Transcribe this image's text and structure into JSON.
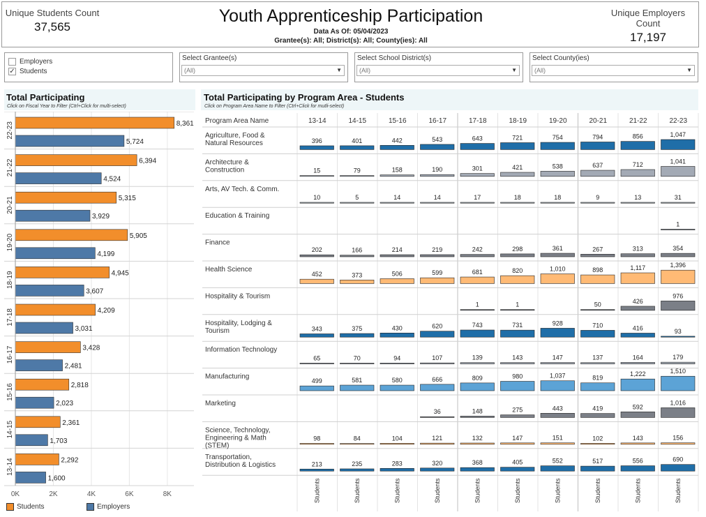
{
  "header": {
    "students_label": "Unique Students Count",
    "students_value": "37,565",
    "title": "Youth Apprenticeship Participation",
    "data_as_of": "Data As Of: 05/04/2023",
    "filters_summary": "Grantee(s):  All; District(s):  All; County(ies): All",
    "employers_label": "Unique Employers Count",
    "employers_value": "17,197"
  },
  "type_filter": {
    "items": [
      {
        "label": "Employers",
        "checked": false
      },
      {
        "label": "Students",
        "checked": true
      }
    ],
    "check_glyph": "✓"
  },
  "filters": [
    {
      "label": "Select Grantee(s)",
      "value": "(All)"
    },
    {
      "label": "Select School District(s)",
      "value": "(All)"
    },
    {
      "label": "Select County(ies)",
      "value": "(All)"
    }
  ],
  "icons": {
    "dropdown": "chevron-down-icon",
    "dropdown_glyph": "▼"
  },
  "colors": {
    "students": "#f28e2b",
    "employers": "#4e79a7",
    "program_blue": "#1f6ea8",
    "program_gray": "#a3aab5",
    "program_orange": "#ffba75",
    "program_light_blue": "#5ca3d6",
    "program_dark_gray": "#7b7f87"
  },
  "left_panel": {
    "title": "Total  Participating",
    "subtitle": "Click on Fiscal Year to Filter (Ctrl+Click for multi-select)"
  },
  "legend": {
    "students": "Students",
    "employers": "Employers"
  },
  "chart_data": [
    {
      "type": "bar",
      "orientation": "horizontal",
      "title": "Total  Participating",
      "categories": [
        "22-23",
        "21-22",
        "20-21",
        "19-20",
        "18-19",
        "17-18",
        "16-17",
        "15-16",
        "14-15",
        "13-14"
      ],
      "series": [
        {
          "name": "Students",
          "values": [
            8361,
            6394,
            5315,
            5905,
            4945,
            4209,
            3428,
            2818,
            2361,
            2292
          ]
        },
        {
          "name": "Employers",
          "values": [
            5724,
            4524,
            3929,
            4199,
            3607,
            3031,
            2481,
            2023,
            1703,
            1600
          ]
        }
      ],
      "xlim": [
        0,
        9400
      ],
      "xticks": [
        0,
        2000,
        4000,
        6000,
        8000
      ],
      "xtick_labels": [
        "0K",
        "2K",
        "4K",
        "6K",
        "8K"
      ],
      "legend": "bottom"
    },
    {
      "type": "bar",
      "title": "Total Participating by Program Area - Students",
      "subtitle": "Click on Program Area Name to Filter  (Ctrl+Click for mutli-select)",
      "row_header": "Program Area Name",
      "columns": [
        "13-14",
        "14-15",
        "15-16",
        "16-17",
        "17-18",
        "18-19",
        "19-20",
        "20-21",
        "21-22",
        "22-23"
      ],
      "footer_label": "Students",
      "rows": [
        {
          "name": "Agriculture, Food & Natural Resources",
          "color": "#1f6ea8",
          "values": [
            396,
            401,
            442,
            543,
            643,
            721,
            754,
            794,
            856,
            1047
          ],
          "labels": [
            "396",
            "401",
            "442",
            "543",
            "643",
            "721",
            "754",
            "794",
            "856",
            "1,047"
          ]
        },
        {
          "name": "Architecture & Construction",
          "color": "#a3aab5",
          "values": [
            15,
            79,
            158,
            190,
            301,
            421,
            538,
            637,
            712,
            1041
          ],
          "labels": [
            "15",
            "79",
            "158",
            "190",
            "301",
            "421",
            "538",
            "637",
            "712",
            "1,041"
          ]
        },
        {
          "name": "Arts, AV Tech. & Comm.",
          "color": "#a3aab5",
          "values": [
            10,
            5,
            14,
            14,
            17,
            18,
            18,
            9,
            13,
            31
          ],
          "labels": [
            "10",
            "5",
            "14",
            "14",
            "17",
            "18",
            "18",
            "9",
            "13",
            "31"
          ]
        },
        {
          "name": "Education & Training",
          "color": "#a3aab5",
          "values": [
            null,
            null,
            null,
            null,
            null,
            null,
            null,
            null,
            null,
            1
          ],
          "labels": [
            "",
            "",
            "",
            "",
            "",
            "",
            "",
            "",
            "",
            "1"
          ]
        },
        {
          "name": "Finance",
          "color": "#7b7f87",
          "values": [
            202,
            166,
            214,
            219,
            242,
            298,
            361,
            267,
            313,
            354
          ],
          "labels": [
            "202",
            "166",
            "214",
            "219",
            "242",
            "298",
            "361",
            "267",
            "313",
            "354"
          ]
        },
        {
          "name": "Health Science",
          "color": "#ffba75",
          "values": [
            452,
            373,
            506,
            599,
            681,
            820,
            1010,
            898,
            1117,
            1396
          ],
          "labels": [
            "452",
            "373",
            "506",
            "599",
            "681",
            "820",
            "1,010",
            "898",
            "1,117",
            "1,396"
          ]
        },
        {
          "name": "Hospitality & Tourism",
          "color": "#7b7f87",
          "values": [
            null,
            null,
            null,
            null,
            1,
            1,
            null,
            50,
            426,
            976
          ],
          "labels": [
            "",
            "",
            "",
            "",
            "1",
            "1",
            "",
            "50",
            "426",
            "976"
          ]
        },
        {
          "name": "Hospitality, Lodging & Tourism",
          "color": "#1f6ea8",
          "values": [
            343,
            375,
            430,
            620,
            743,
            731,
            928,
            710,
            416,
            93
          ],
          "labels": [
            "343",
            "375",
            "430",
            "620",
            "743",
            "731",
            "928",
            "710",
            "416",
            "93"
          ]
        },
        {
          "name": "Information Technology",
          "color": "#a3aab5",
          "values": [
            65,
            70,
            94,
            107,
            139,
            143,
            147,
            137,
            164,
            179
          ],
          "labels": [
            "65",
            "70",
            "94",
            "107",
            "139",
            "143",
            "147",
            "137",
            "164",
            "179"
          ]
        },
        {
          "name": "Manufacturing",
          "color": "#5ca3d6",
          "values": [
            499,
            581,
            580,
            666,
            809,
            980,
            1037,
            819,
            1222,
            1510
          ],
          "labels": [
            "499",
            "581",
            "580",
            "666",
            "809",
            "980",
            "1,037",
            "819",
            "1,222",
            "1,510"
          ]
        },
        {
          "name": "Marketing",
          "color": "#7b7f87",
          "values": [
            null,
            null,
            null,
            36,
            148,
            275,
            443,
            419,
            592,
            1016
          ],
          "labels": [
            "",
            "",
            "",
            "36",
            "148",
            "275",
            "443",
            "419",
            "592",
            "1,016"
          ]
        },
        {
          "name": "Science, Technology, Engineering & Math (STEM)",
          "color": "#ffba75",
          "values": [
            98,
            84,
            104,
            121,
            132,
            147,
            151,
            102,
            143,
            156
          ],
          "labels": [
            "98",
            "84",
            "104",
            "121",
            "132",
            "147",
            "151",
            "102",
            "143",
            "156"
          ]
        },
        {
          "name": "Transportation, Distribution & Logistics",
          "color": "#1f6ea8",
          "values": [
            213,
            235,
            283,
            320,
            368,
            405,
            552,
            517,
            556,
            690
          ],
          "labels": [
            "213",
            "235",
            "283",
            "320",
            "368",
            "405",
            "552",
            "517",
            "556",
            "690"
          ]
        }
      ]
    }
  ]
}
